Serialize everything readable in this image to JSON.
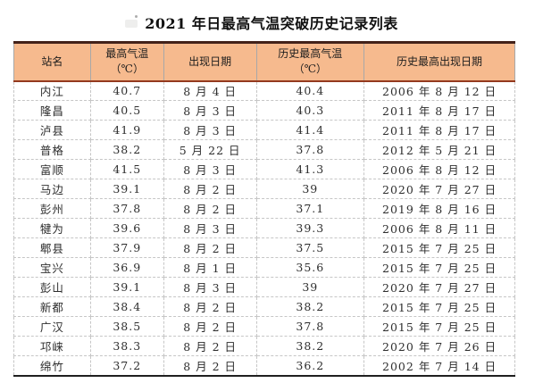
{
  "title": "2021 年日最高气温突破历史记录列表",
  "colors": {
    "header_bg": "#f6ba8e",
    "table_top_border": "#43221a",
    "header_rule": "#943a1f",
    "table_bottom_border": "#1f1f1f",
    "dashed_grid": "#c6c6c6"
  },
  "chart_data": {
    "type": "table",
    "title": "2021 年日最高气温突破历史记录列表",
    "columns": [
      {
        "label": "站名",
        "sub": ""
      },
      {
        "label": "最高气温",
        "sub": "（℃）"
      },
      {
        "label": "出现日期",
        "sub": ""
      },
      {
        "label": "历史最高气温",
        "sub": "（℃）"
      },
      {
        "label": "历史最高出现日期",
        "sub": ""
      }
    ],
    "rows": [
      [
        "内江",
        "40.7",
        "8 月 4 日",
        "40.4",
        "2006 年 8 月 12 日"
      ],
      [
        "隆昌",
        "40.5",
        "8 月 3 日",
        "40.3",
        "2011 年 8 月 17 日"
      ],
      [
        "泸县",
        "41.9",
        "8 月 3 日",
        "41.4",
        "2011 年 8 月 17 日"
      ],
      [
        "普格",
        "38.2",
        "5 月 22 日",
        "37.8",
        "2012 年 5 月 21 日"
      ],
      [
        "富顺",
        "41.5",
        "8 月 3 日",
        "41.3",
        "2006 年 8 月 12 日"
      ],
      [
        "马边",
        "39.1",
        "8 月 2 日",
        "39",
        "2020 年 7 月 27 日"
      ],
      [
        "彭州",
        "37.8",
        "8 月 2 日",
        "37.1",
        "2019 年 8 月 16 日"
      ],
      [
        "犍为",
        "39.6",
        "8 月 3 日",
        "39.3",
        "2006 年 8 月 11 日"
      ],
      [
        "郫县",
        "37.9",
        "8 月 2 日",
        "37.5",
        "2015 年 7 月 25 日"
      ],
      [
        "宝兴",
        "36.9",
        "8 月 1 日",
        "35.6",
        "2015 年 7 月 25 日"
      ],
      [
        "彭山",
        "39.1",
        "8 月 3 日",
        "39",
        "2020 年 7 月 27 日"
      ],
      [
        "新都",
        "38.4",
        "8 月 2 日",
        "38.2",
        "2015 年 7 月 25 日"
      ],
      [
        "广汉",
        "38.5",
        "8 月 2 日",
        "37.8",
        "2015 年 7 月 25 日"
      ],
      [
        "邛崃",
        "38.3",
        "8 月 2 日",
        "38.2",
        "2020 年 7 月 26 日"
      ],
      [
        "绵竹",
        "37.2",
        "8 月 2 日",
        "36.2",
        "2002 年 7 月 14 日"
      ]
    ]
  }
}
